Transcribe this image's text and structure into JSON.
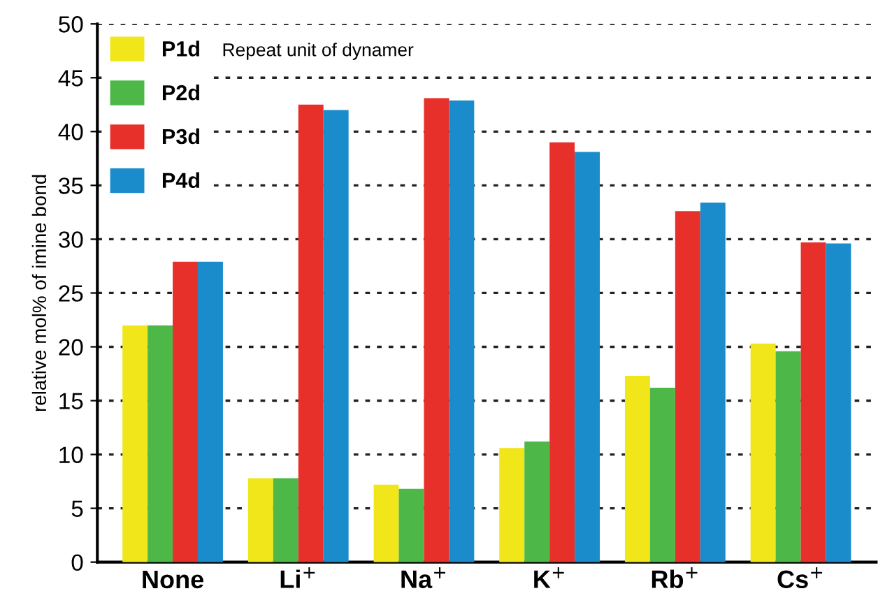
{
  "chart_data": {
    "type": "bar",
    "ylabel": "relative mol% of imine bond",
    "categories": [
      "None",
      "Li$^{+}$",
      "Na$^{+}$",
      "K$^{+}$",
      "Rb$^{+}$",
      "Cs$^{+}$"
    ],
    "series": [
      {
        "name": "P1d",
        "color": "#f0e619",
        "values": [
          22.0,
          7.8,
          7.2,
          10.6,
          17.3,
          20.3
        ]
      },
      {
        "name": "P2d",
        "color": "#4db848",
        "values": [
          22.0,
          7.8,
          6.8,
          11.2,
          16.2,
          19.6
        ]
      },
      {
        "name": "P3d",
        "color": "#e8302a",
        "values": [
          27.9,
          42.5,
          43.1,
          39.0,
          32.6,
          29.7
        ]
      },
      {
        "name": "P4d",
        "color": "#1a8ccc",
        "values": [
          27.9,
          42.0,
          42.9,
          38.1,
          33.4,
          29.6
        ]
      }
    ],
    "ylim": [
      0,
      50
    ],
    "yticks": [
      0,
      5,
      10,
      15,
      20,
      25,
      30,
      35,
      40,
      45,
      50
    ],
    "grid": "y",
    "legend": "top left",
    "annotations": [
      "Repeat unit of dynamer"
    ]
  }
}
